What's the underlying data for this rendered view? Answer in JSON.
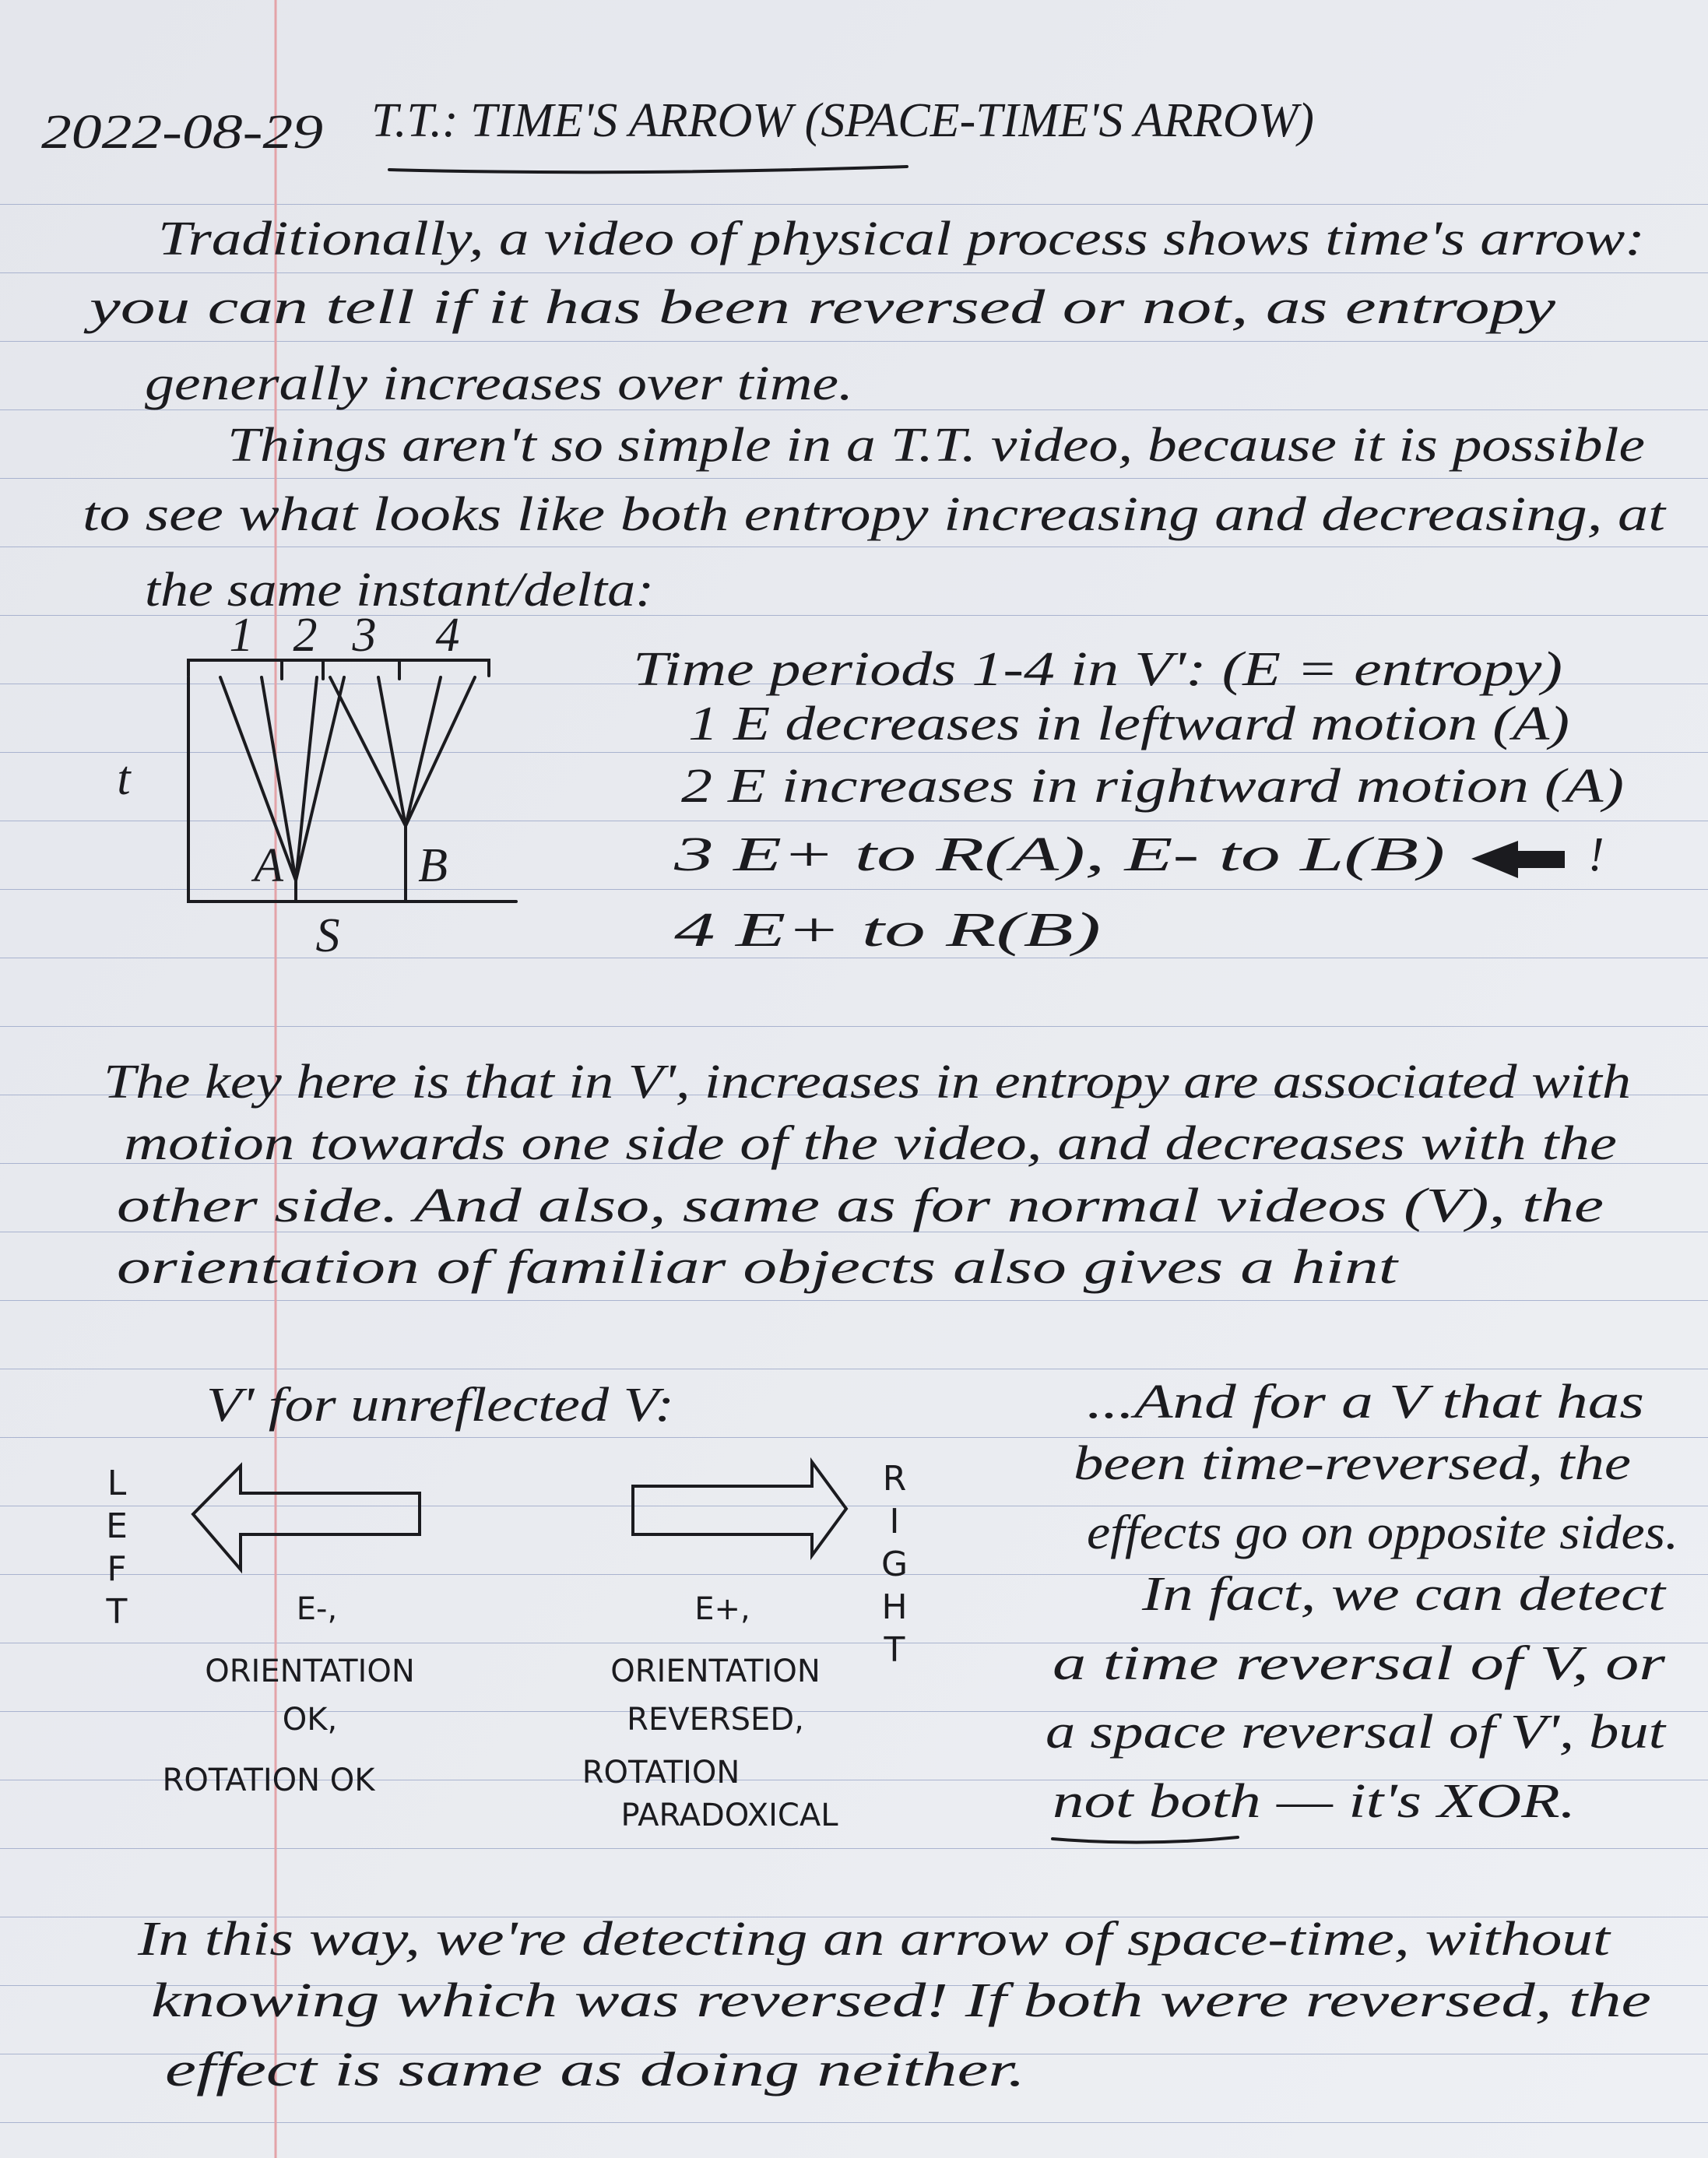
{
  "header": {
    "date": "2022-08-29",
    "title": "T.T.: TIME'S ARROW (SPACE-TIME'S ARROW)"
  },
  "intro": {
    "lines": [
      "Traditionally, a video of physical process shows time's arrow:",
      "you can tell if it has been reversed or not, as entropy",
      "generally increases over time.",
      "Things aren't so simple in a T.T. video, because it is possible",
      "to see what looks like both entropy increasing and decreasing, at",
      "the same instant/delta:"
    ]
  },
  "diagram": {
    "periods": [
      "1",
      "2",
      "3",
      "4"
    ],
    "t_axis": "t",
    "s_axis": "S",
    "point_a": "A",
    "point_b": "B"
  },
  "periods": {
    "heading": "Time periods 1-4 in V': (E = entropy)",
    "items": [
      "1 E decreases in leftward motion (A)",
      "2 E increases in rightward motion (A)",
      "3 E+ to R(A), E- to L(B)",
      "4 E+ to R(B)"
    ],
    "emphasis": "!"
  },
  "key": {
    "lines": [
      "The key here is that in V', increases in entropy are associated with",
      "motion towards one side of the video, and decreases with the",
      "other side. And also, same as for normal videos (V), the",
      "orientation of familiar objects also gives a hint"
    ]
  },
  "unreflected": {
    "heading": "V' for unreflected V:",
    "left": {
      "side": "LEFT",
      "effect": "E-,",
      "notes": [
        "ORIENTATION",
        "OK,",
        "ROTATION OK"
      ]
    },
    "right": {
      "side": "RIGHT",
      "effect": "E+,",
      "notes": [
        "ORIENTATION",
        "REVERSED,",
        "ROTATION",
        "PARADOXICAL"
      ]
    }
  },
  "reversed": {
    "lines": [
      "...And for a V that has",
      "been time-reversed, the",
      "effects go on opposite sides.",
      "In fact, we can detect",
      "a time reversal of V, or",
      "a space reversal of V', but",
      "not both — it's XOR."
    ]
  },
  "conclusion": {
    "lines": [
      "In this way, we're detecting an arrow of space-time, without",
      "knowing which was reversed! If both were reversed, the",
      "effect is same as doing neither."
    ]
  }
}
